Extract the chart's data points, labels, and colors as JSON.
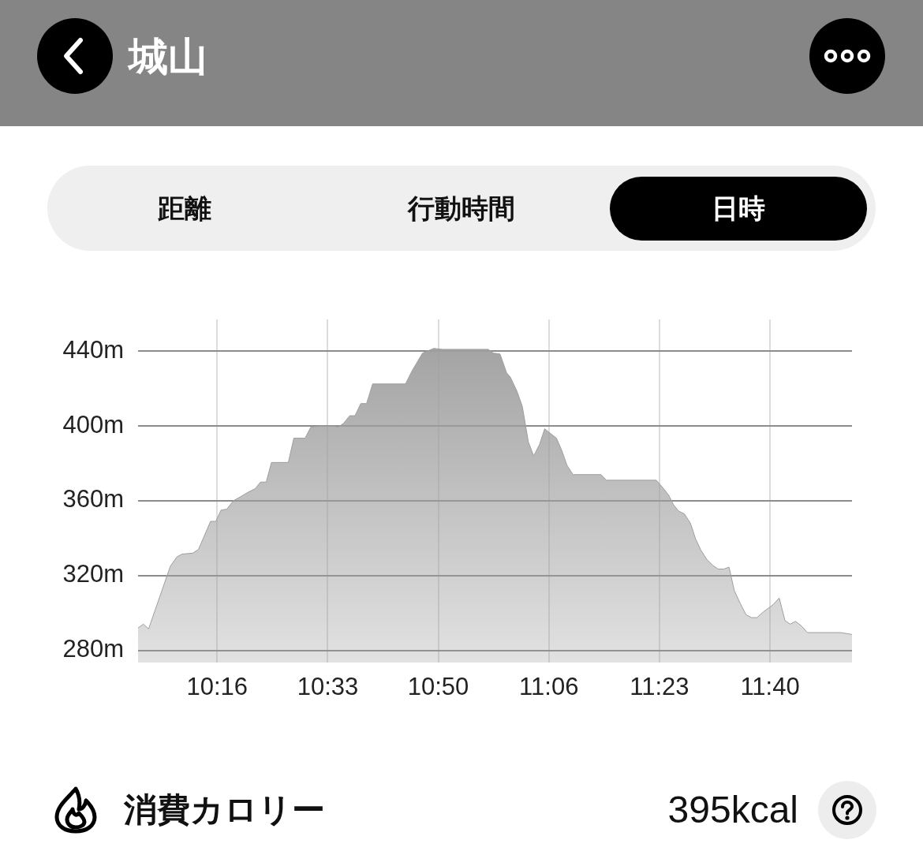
{
  "chart_data": [
    {
      "type": "area",
      "title": "城山",
      "annotations": [
        "距離",
        "行動時間",
        "日時"
      ],
      "x": [
        10.0747,
        10.088,
        10.1012,
        10.1558,
        10.1723,
        10.1855,
        10.212,
        10.2265,
        10.2568,
        10.27,
        10.2832,
        10.2977,
        10.3142,
        10.3307,
        10.3505,
        10.369,
        10.3822,
        10.3967,
        10.4098,
        10.4522,
        10.466,
        10.4943,
        10.5088,
        10.5353,
        10.5617,
        10.5782,
        10.5913,
        10.6065,
        10.6197,
        10.6343,
        10.6488,
        10.664,
        10.7465,
        10.763,
        10.7893,
        10.8177,
        10.8388,
        10.9543,
        10.9675,
        10.984,
        11.0005,
        11.0103,
        11.0268,
        11.04,
        11.0552,
        11.0685,
        11.083,
        11.0962,
        11.1107,
        11.1258,
        11.139,
        11.1522,
        11.1673,
        11.238,
        11.2512,
        11.3765,
        11.393,
        11.4077,
        11.4195,
        11.4327,
        11.4472,
        11.4623,
        11.4755,
        11.4888,
        11.5038,
        11.5185,
        11.5317,
        11.5462,
        11.5593,
        11.5725,
        11.5877,
        11.6022,
        11.6162,
        11.6293,
        11.6452,
        11.6702,
        11.6853,
        11.6998,
        11.713,
        11.7263,
        11.7415,
        11.756,
        11.8405,
        11.8682
      ],
      "values": [
        292,
        294,
        291.5,
        325,
        330,
        331.5,
        332,
        334,
        349,
        349,
        355,
        355.5,
        360,
        362,
        364.5,
        366.5,
        370,
        370,
        380.5,
        380.5,
        393.5,
        393.5,
        399.5,
        400,
        400,
        399.5,
        401.5,
        405.5,
        405.5,
        412,
        412,
        422.5,
        422.5,
        429.5,
        439,
        441.5,
        441,
        441,
        439,
        438.5,
        428.5,
        426,
        418.5,
        410.5,
        391.5,
        384,
        390,
        398.5,
        396,
        393.5,
        387,
        379,
        374,
        374,
        371,
        371,
        367,
        363,
        358,
        354.5,
        353,
        348,
        339.5,
        333.5,
        328.5,
        325.5,
        323.5,
        323.5,
        324.5,
        312,
        305,
        299,
        297.5,
        297.5,
        300.5,
        304.5,
        308,
        296,
        294,
        295.5,
        293,
        289.5,
        289.5,
        288.5
      ],
      "color": "#9e9e9e",
      "xlim": [
        10.0747,
        11.8682
      ],
      "xticks": [
        {
          "value": 10.2733,
          "label": "10:16"
        },
        {
          "value": 10.5512,
          "label": "10:33"
        },
        {
          "value": 10.8288,
          "label": "10:50"
        },
        {
          "value": 11.1067,
          "label": "11:06"
        },
        {
          "value": 11.3845,
          "label": "11:23"
        },
        {
          "value": 11.6622,
          "label": "11:40"
        }
      ],
      "ylim": [
        273.5,
        457
      ],
      "yticks": [
        {
          "value": 280,
          "label": "280m"
        },
        {
          "value": 320,
          "label": "320m"
        },
        {
          "value": 360,
          "label": "360m"
        },
        {
          "value": 400,
          "label": "400m"
        },
        {
          "value": 440,
          "label": "440m"
        }
      ],
      "grid": true
    },
    {
      "type": "other",
      "title": "消費カロリー",
      "annotations": [
        "395kcal"
      ]
    }
  ]
}
